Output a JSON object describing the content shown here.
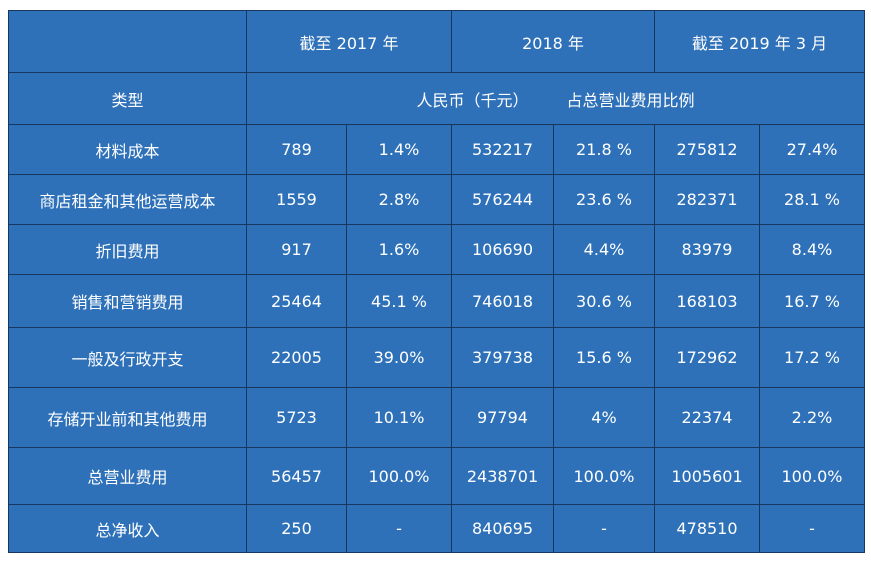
{
  "header": {
    "period_2017": "截至 2017 年",
    "period_2018": "2018 年",
    "period_2019": "截至 2019 年 3 月",
    "type_label": "类型",
    "unit_label": "人民币（千元）",
    "ratio_label": "占总营业费用比例"
  },
  "rows": [
    {
      "name": "材料成本",
      "v2017": "789",
      "p2017": "1.4%",
      "v2018": "532217",
      "p2018": "21.8 %",
      "v2019": "275812",
      "p2019": "27.4%"
    },
    {
      "name": "商店租金和其他运营成本",
      "v2017": "1559",
      "p2017": "2.8%",
      "v2018": "576244",
      "p2018": "23.6 %",
      "v2019": "282371",
      "p2019": "28.1 %"
    },
    {
      "name": "折旧费用",
      "v2017": "917",
      "p2017": "1.6%",
      "v2018": "106690",
      "p2018": "4.4%",
      "v2019": "83979",
      "p2019": "8.4%"
    },
    {
      "name": "销售和营销费用",
      "v2017": "25464",
      "p2017": "45.1 %",
      "v2018": "746018",
      "p2018": "30.6 %",
      "v2019": "168103",
      "p2019": "16.7 %"
    },
    {
      "name": "一般及行政开支",
      "v2017": "22005",
      "p2017": "39.0%",
      "v2018": "379738",
      "p2018": "15.6 %",
      "v2019": "172962",
      "p2019": "17.2 %"
    },
    {
      "name": "存储开业前和其他费用",
      "v2017": "5723",
      "p2017": "10.1%",
      "v2018": "97794",
      "p2018": "4%",
      "v2019": "22374",
      "p2019": "2.2%"
    },
    {
      "name": "总营业费用",
      "v2017": "56457",
      "p2017": "100.0%",
      "v2018": "2438701",
      "p2018": "100.0%",
      "v2019": "1005601",
      "p2019": "100.0%"
    },
    {
      "name": "总净收入",
      "v2017": "250",
      "p2017": "-",
      "v2018": "840695",
      "p2018": "-",
      "v2019": "478510",
      "p2019": "-"
    }
  ]
}
